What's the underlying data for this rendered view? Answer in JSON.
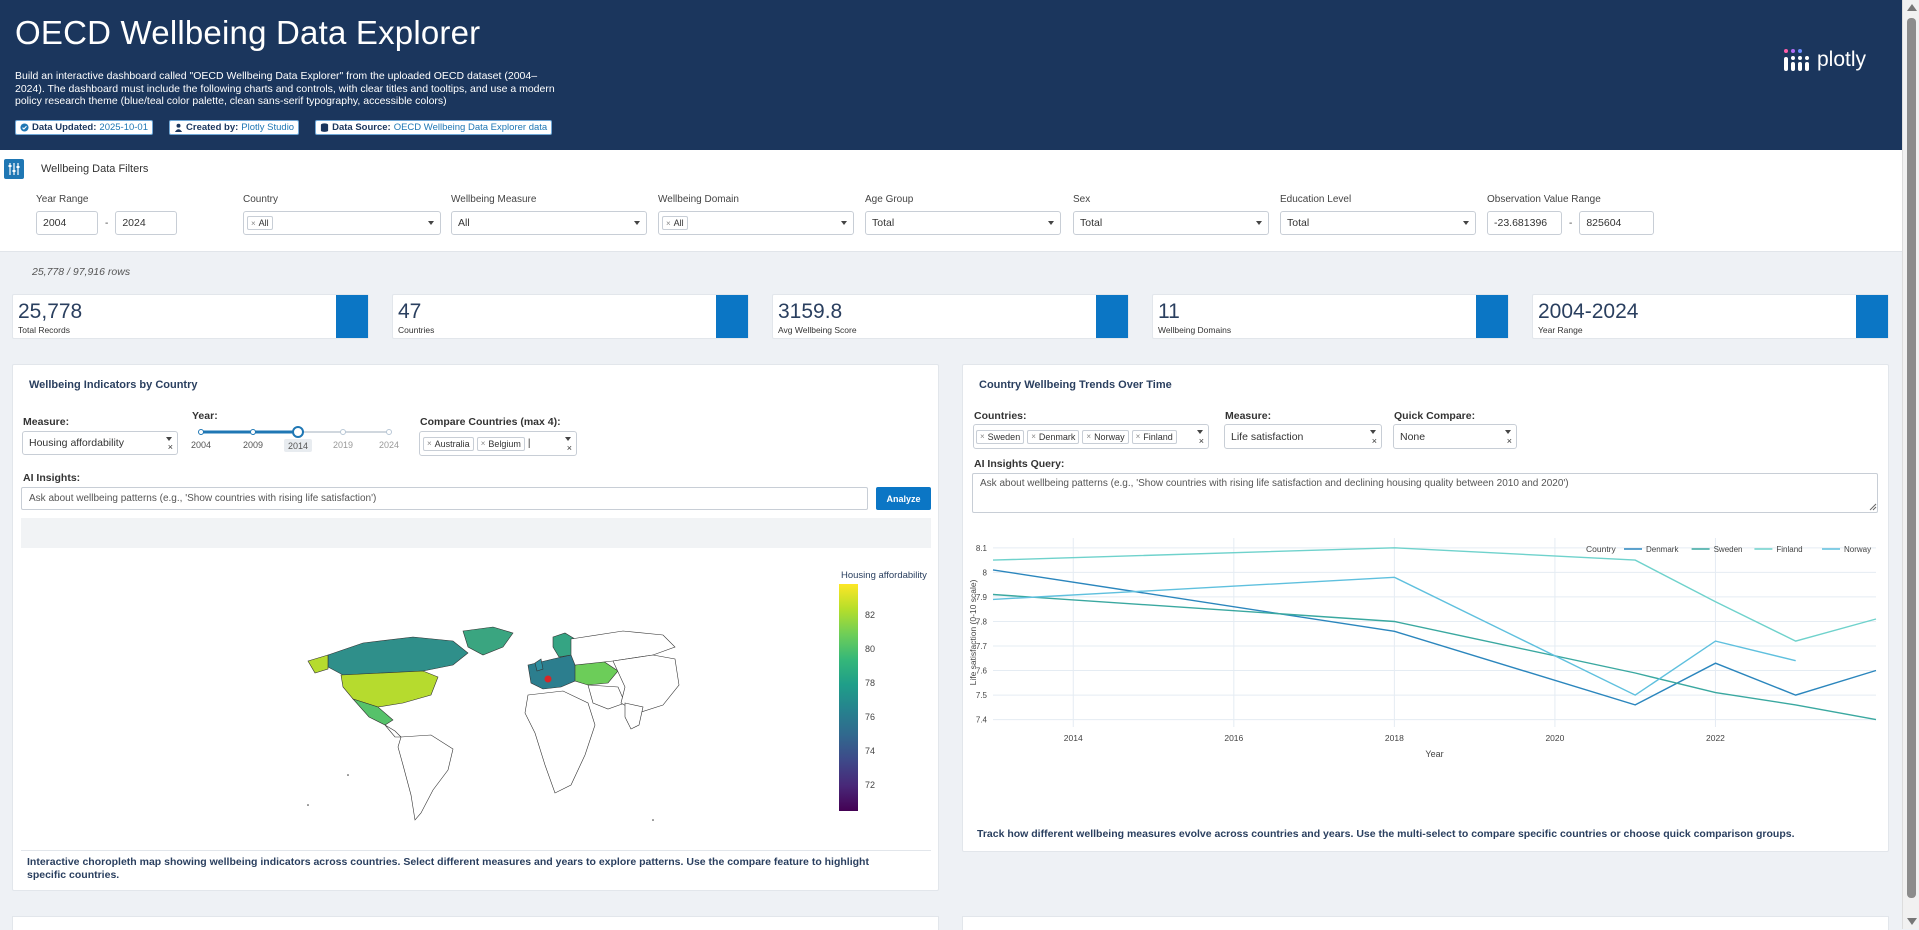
{
  "header": {
    "title": "OECD Wellbeing Data Explorer",
    "description": "Build an interactive dashboard called \"OECD Wellbeing Data Explorer\" from the uploaded OECD dataset (2004–2024). The dashboard must include the following charts and controls, with clear titles and tooltips, and use a modern policy research theme (blue/teal color palette, clean sans-serif typography, accessible colors)",
    "badges": [
      {
        "label": "Data Updated:",
        "value": "2025-10-01",
        "icon": "check-circle-icon"
      },
      {
        "label": "Created by:",
        "value": "Plotly Studio",
        "icon": "user-icon"
      },
      {
        "label": "Data Source:",
        "value": "OECD Wellbeing Data Explorer data",
        "icon": "database-icon"
      }
    ],
    "logo_text": "plotly"
  },
  "filters": {
    "title": "Wellbeing Data Filters",
    "year_range": {
      "label": "Year Range",
      "from": "2004",
      "to": "2024",
      "sep": "-"
    },
    "country": {
      "label": "Country",
      "tag": "All"
    },
    "measure": {
      "label": "Wellbeing Measure",
      "value": "All"
    },
    "domain": {
      "label": "Wellbeing Domain",
      "tag": "All"
    },
    "age_group": {
      "label": "Age Group",
      "value": "Total"
    },
    "sex": {
      "label": "Sex",
      "value": "Total"
    },
    "education": {
      "label": "Education Level",
      "value": "Total"
    },
    "obs_range": {
      "label": "Observation Value Range",
      "from": "-23.681396",
      "to": "825604",
      "sep": "-"
    }
  },
  "row_count": "25,778 / 97,916 rows",
  "kpis": [
    {
      "value": "25,778",
      "label": "Total Records"
    },
    {
      "value": "47",
      "label": "Countries"
    },
    {
      "value": "3159.8",
      "label": "Avg Wellbeing Score"
    },
    {
      "value": "11",
      "label": "Wellbeing Domains"
    },
    {
      "value": "2004-2024",
      "label": "Year Range"
    }
  ],
  "map_panel": {
    "title": "Wellbeing Indicators by Country",
    "measure_label": "Measure:",
    "measure_value": "Housing affordability",
    "year_label": "Year:",
    "year_marks": [
      "2004",
      "2009",
      "2014",
      "2019",
      "2024"
    ],
    "year_value": 2014,
    "year_min": 2004,
    "year_max": 2024,
    "compare_label": "Compare Countries (max 4):",
    "compare_tags": [
      "Australia",
      "Belgium"
    ],
    "ai_label": "AI Insights:",
    "ai_placeholder": "Ask about wellbeing patterns (e.g., 'Show countries with rising life satisfaction')",
    "analyze_label": "Analyze",
    "colorbar_title": "Housing affordability",
    "colorbar_ticks": [
      "82",
      "80",
      "78",
      "76",
      "74",
      "72"
    ],
    "caption": "Interactive choropleth map showing wellbeing indicators across countries. Select different measures and years to explore patterns. Use the compare feature to highlight specific countries."
  },
  "trend_panel": {
    "title": "Country Wellbeing Trends Over Time",
    "countries_label": "Countries:",
    "country_tags": [
      "Sweden",
      "Denmark",
      "Norway",
      "Finland"
    ],
    "measure_label": "Measure:",
    "measure_value": "Life satisfaction",
    "quick_label": "Quick Compare:",
    "quick_value": "None",
    "ai_label": "AI Insights Query:",
    "ai_placeholder": "Ask about wellbeing patterns (e.g., 'Show countries with rising life satisfaction and declining housing quality between 2010 and 2020')",
    "caption": "Track how different wellbeing measures evolve across countries and years. Use the multi-select to compare specific countries or choose quick comparison groups."
  },
  "chart_data": {
    "type": "line",
    "title": "Country Wellbeing Trends Over Time",
    "xlabel": "Year",
    "ylabel": "Life satisfaction (0-10 scale)",
    "xlim": [
      2013,
      2024
    ],
    "ylim": [
      7.37,
      8.14
    ],
    "xticks": [
      2014,
      2016,
      2018,
      2020,
      2022
    ],
    "yticks": [
      7.4,
      7.5,
      7.6,
      7.7,
      7.8,
      7.9,
      8,
      8.1
    ],
    "legend_title": "Country",
    "legend_position": "top-right",
    "series": [
      {
        "name": "Denmark",
        "color": "#2b86bd",
        "x": [
          2013,
          2018,
          2021,
          2022,
          2023,
          2024
        ],
        "y": [
          8.01,
          7.76,
          7.46,
          7.63,
          7.5,
          7.6
        ]
      },
      {
        "name": "Sweden",
        "color": "#3aa8a0",
        "x": [
          2013,
          2018,
          2021,
          2022,
          2023,
          2024
        ],
        "y": [
          7.91,
          7.8,
          7.59,
          7.51,
          7.46,
          7.4
        ]
      },
      {
        "name": "Finland",
        "color": "#6fd2cc",
        "x": [
          2013,
          2018,
          2021,
          2022,
          2023,
          2024
        ],
        "y": [
          8.05,
          8.1,
          8.05,
          7.88,
          7.72,
          7.81
        ]
      },
      {
        "name": "Norway",
        "color": "#5fc0de",
        "x": [
          2013,
          2018,
          2021,
          2022,
          2023
        ],
        "y": [
          7.89,
          7.98,
          7.5,
          7.72,
          7.64
        ]
      }
    ]
  },
  "colors": {
    "header_bg": "#1b365d",
    "accent": "#0b76c5"
  }
}
